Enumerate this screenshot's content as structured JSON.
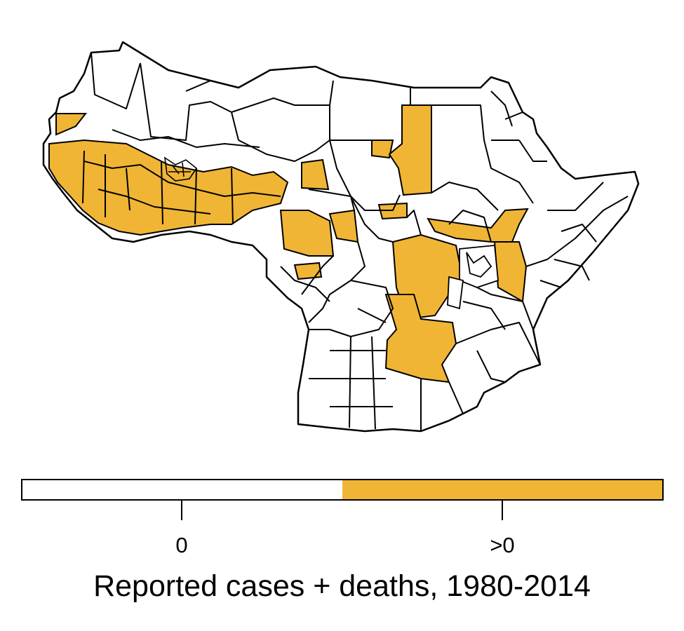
{
  "map": {
    "name": "Sub-Saharan Africa administrative districts",
    "colors": {
      "zero": "#ffffff",
      "positive": "#f0b535",
      "border": "#000000"
    }
  },
  "legend": {
    "title": "Reported cases + deaths, 1980-2014",
    "categories": [
      {
        "label": "0",
        "color": "#ffffff"
      },
      {
        "label": ">0",
        "color": "#f0b535"
      }
    ]
  }
}
